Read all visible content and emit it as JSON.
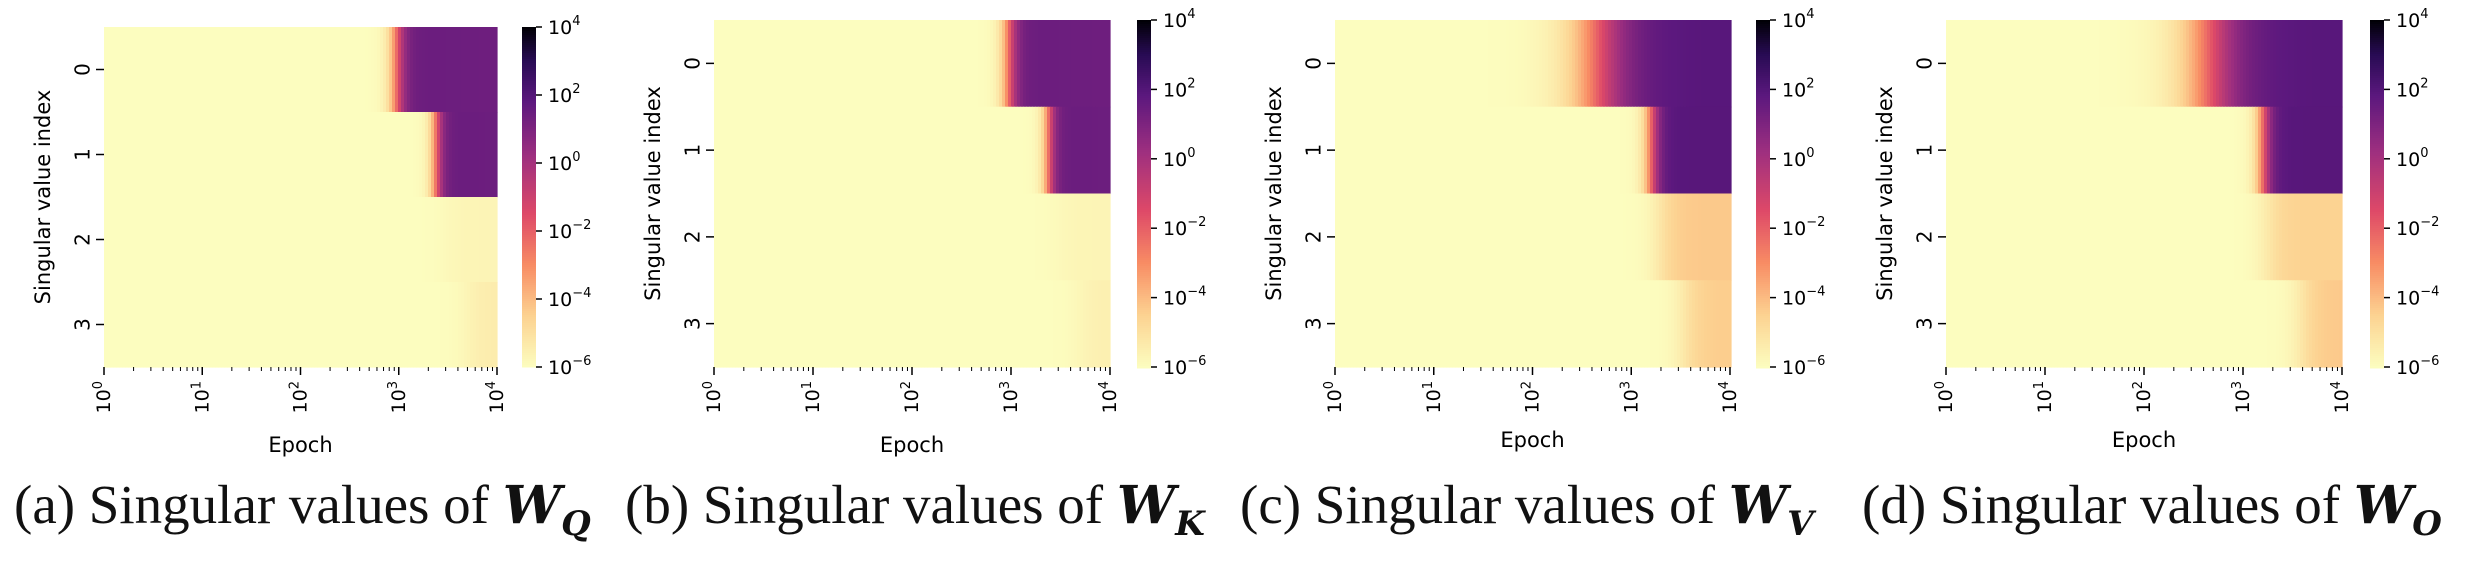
{
  "chart_data": [
    {
      "type": "heatmap",
      "panel": "a",
      "xlabel": "Epoch",
      "ylabel": "Singular value index",
      "x_scale": "log",
      "xlim": [
        1,
        10000
      ],
      "x_tick_labels": [
        {
          "base": "10",
          "exp": "0"
        },
        {
          "base": "10",
          "exp": "1"
        },
        {
          "base": "10",
          "exp": "2"
        },
        {
          "base": "10",
          "exp": "3"
        },
        {
          "base": "10",
          "exp": "4"
        }
      ],
      "rows": [
        "0",
        "1",
        "2",
        "3"
      ],
      "colorbar": {
        "scale": "log",
        "min": 1e-06,
        "max": 10000.0,
        "tick_labels": [
          {
            "base": "10",
            "exp": "4"
          },
          {
            "base": "10",
            "exp": "2"
          },
          {
            "base": "10",
            "exp": "0"
          },
          {
            "base": "10",
            "exp": "−2"
          },
          {
            "base": "10",
            "exp": "−4"
          },
          {
            "base": "10",
            "exp": "−6"
          }
        ]
      },
      "row_data": [
        {
          "baseline": 1e-06,
          "rise_epoch": 950,
          "rise_width": 0.05,
          "value": 30,
          "decay": 0.12
        },
        {
          "baseline": 1e-06,
          "rise_epoch": 2400,
          "rise_width": 0.04,
          "value": 30,
          "decay": 0.12
        },
        {
          "baseline": 1e-06,
          "tail_start": 3000,
          "tail_value": 2e-06
        },
        {
          "baseline": 1e-06,
          "tail_start": 5000,
          "tail_value": 4e-06
        }
      ]
    },
    {
      "type": "heatmap",
      "panel": "b",
      "xlabel": "Epoch",
      "ylabel": "Singular value index",
      "x_scale": "log",
      "xlim": [
        1,
        10000
      ],
      "x_tick_labels": [
        {
          "base": "10",
          "exp": "0"
        },
        {
          "base": "10",
          "exp": "1"
        },
        {
          "base": "10",
          "exp": "2"
        },
        {
          "base": "10",
          "exp": "3"
        },
        {
          "base": "10",
          "exp": "4"
        }
      ],
      "rows": [
        "0",
        "1",
        "2",
        "3"
      ],
      "colorbar": {
        "scale": "log",
        "min": 1e-06,
        "max": 10000.0,
        "tick_labels": [
          {
            "base": "10",
            "exp": "4"
          },
          {
            "base": "10",
            "exp": "2"
          },
          {
            "base": "10",
            "exp": "0"
          },
          {
            "base": "10",
            "exp": "−2"
          },
          {
            "base": "10",
            "exp": "−4"
          },
          {
            "base": "10",
            "exp": "−6"
          }
        ]
      },
      "row_data": [
        {
          "baseline": 1e-06,
          "rise_epoch": 950,
          "rise_width": 0.05,
          "value": 30,
          "decay": 0.12
        },
        {
          "baseline": 1e-06,
          "rise_epoch": 2400,
          "rise_width": 0.04,
          "value": 30,
          "decay": 0.12
        },
        {
          "baseline": 1e-06,
          "tail_start": 3000,
          "tail_value": 2e-06
        },
        {
          "baseline": 1e-06,
          "tail_start": 5000,
          "tail_value": 3e-06
        }
      ]
    },
    {
      "type": "heatmap",
      "panel": "c",
      "xlabel": "Epoch",
      "ylabel": "Singular value index",
      "x_scale": "log",
      "xlim": [
        1,
        10000
      ],
      "x_tick_labels": [
        {
          "base": "10",
          "exp": "0"
        },
        {
          "base": "10",
          "exp": "1"
        },
        {
          "base": "10",
          "exp": "2"
        },
        {
          "base": "10",
          "exp": "3"
        },
        {
          "base": "10",
          "exp": "4"
        }
      ],
      "rows": [
        "0",
        "1",
        "2",
        "3"
      ],
      "colorbar": {
        "scale": "log",
        "min": 1e-06,
        "max": 10000.0,
        "tick_labels": [
          {
            "base": "10",
            "exp": "4"
          },
          {
            "base": "10",
            "exp": "2"
          },
          {
            "base": "10",
            "exp": "0"
          },
          {
            "base": "10",
            "exp": "−2"
          },
          {
            "base": "10",
            "exp": "−4"
          },
          {
            "base": "10",
            "exp": "−6"
          }
        ]
      },
      "row_data": [
        {
          "baseline": 1e-06,
          "rise_epoch": 450,
          "rise_width": 0.18,
          "value": 80,
          "decay": 0
        },
        {
          "baseline": 1e-06,
          "rise_epoch": 1600,
          "rise_width": 0.05,
          "value": 80,
          "decay": 0
        },
        {
          "baseline": 1e-06,
          "tail_start": 2000,
          "tail_value": 5e-05
        },
        {
          "baseline": 1e-06,
          "tail_start": 3500,
          "tail_value": 4e-05
        }
      ]
    },
    {
      "type": "heatmap",
      "panel": "d",
      "xlabel": "Epoch",
      "ylabel": "Singular value index",
      "x_scale": "log",
      "xlim": [
        1,
        10000
      ],
      "x_tick_labels": [
        {
          "base": "10",
          "exp": "0"
        },
        {
          "base": "10",
          "exp": "1"
        },
        {
          "base": "10",
          "exp": "2"
        },
        {
          "base": "10",
          "exp": "3"
        },
        {
          "base": "10",
          "exp": "4"
        }
      ],
      "rows": [
        "0",
        "1",
        "2",
        "3"
      ],
      "colorbar": {
        "scale": "log",
        "min": 1e-06,
        "max": 10000.0,
        "tick_labels": [
          {
            "base": "10",
            "exp": "4"
          },
          {
            "base": "10",
            "exp": "2"
          },
          {
            "base": "10",
            "exp": "0"
          },
          {
            "base": "10",
            "exp": "−2"
          },
          {
            "base": "10",
            "exp": "−4"
          },
          {
            "base": "10",
            "exp": "−6"
          }
        ]
      },
      "row_data": [
        {
          "baseline": 1e-06,
          "rise_epoch": 450,
          "rise_width": 0.18,
          "value": 80,
          "decay": 0
        },
        {
          "baseline": 1e-06,
          "rise_epoch": 1600,
          "rise_width": 0.05,
          "value": 80,
          "decay": 0
        },
        {
          "baseline": 1e-06,
          "tail_start": 1800,
          "tail_value": 3e-05
        },
        {
          "baseline": 1e-06,
          "tail_start": 4000,
          "tail_value": 5e-05
        }
      ]
    }
  ],
  "captions": [
    {
      "prefix": "(a) Singular values of ",
      "matrix": "W",
      "subscript": "Q"
    },
    {
      "prefix": "(b) Singular values of ",
      "matrix": "W",
      "subscript": "K"
    },
    {
      "prefix": "(c) Singular values of ",
      "matrix": "W",
      "subscript": "V"
    },
    {
      "prefix": "(d) Singular values of ",
      "matrix": "W",
      "subscript": "O"
    }
  ]
}
